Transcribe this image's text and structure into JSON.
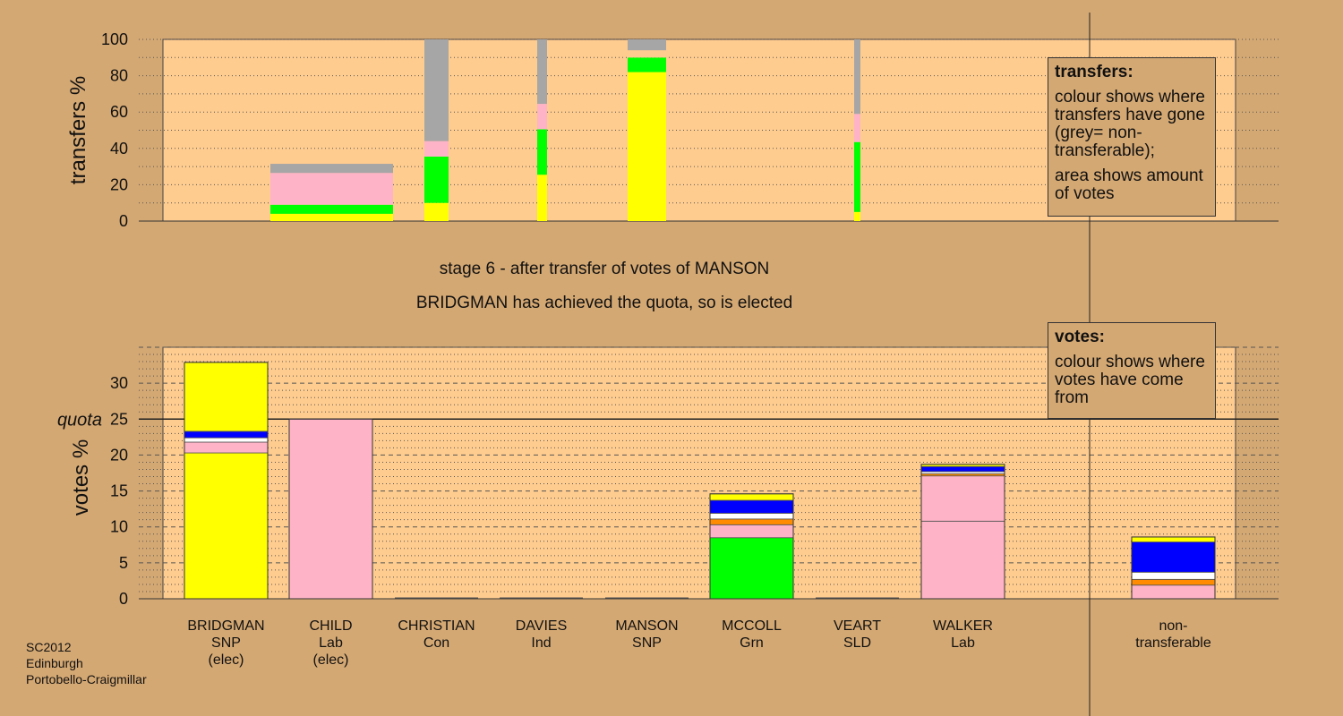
{
  "source": {
    "lines": [
      "SC2012",
      "Edinburgh",
      "Portobello-Craigmillar"
    ]
  },
  "stage": {
    "heading": "stage 6 - after transfer of votes of MANSON",
    "result": "BRIDGMAN has achieved the quota, so is elected"
  },
  "transfers_legend": {
    "title": "transfers:",
    "text1": "colour shows where transfers have gone (grey= non-transferable);",
    "text2": "area shows amount of votes"
  },
  "votes_legend": {
    "title": "votes:",
    "text1": "colour shows where votes have come from"
  },
  "colors": {
    "background": "#d4a873",
    "plot_area": "#ffcc8f",
    "snp": "#ffff00",
    "lab": "#ffb3c7",
    "con": "#0000ff",
    "ind": "#ffffff",
    "grn": "#00ff00",
    "sld": "#ff8c00",
    "non_transferable": "#a6a6a6"
  },
  "chart_data": [
    {
      "type": "bar",
      "ylabel": "transfers %",
      "ylim": [
        0,
        100
      ],
      "yticks": [
        0,
        20,
        40,
        60,
        80,
        100
      ],
      "bars": [
        {
          "name": "MANSON-1",
          "segments": [
            {
              "color": "#ffff00",
              "value": 4
            },
            {
              "color": "#00ff00",
              "value": 5
            },
            {
              "color": "#ffb3c7",
              "value": 17.5
            },
            {
              "color": "#a6a6a6",
              "value": 5
            }
          ]
        },
        {
          "name": "MANSON-2",
          "segments": [
            {
              "color": "#ffff00",
              "value": 10
            },
            {
              "color": "#00ff00",
              "value": 25.5
            },
            {
              "color": "#ffb3c7",
              "value": 8.5
            },
            {
              "color": "#a6a6a6",
              "value": 56
            }
          ]
        },
        {
          "name": "MANSON-3",
          "segments": [
            {
              "color": "#ffff00",
              "value": 25.5
            },
            {
              "color": "#00ff00",
              "value": 25
            },
            {
              "color": "#ffb3c7",
              "value": 14
            },
            {
              "color": "#a6a6a6",
              "value": 35.5
            }
          ]
        },
        {
          "name": "MANSON-4",
          "segments": [
            {
              "color": "#ffff00",
              "value": 82
            },
            {
              "color": "#00ff00",
              "value": 8
            },
            {
              "color": "#ffcc8f",
              "value": 4
            },
            {
              "color": "#a6a6a6",
              "value": 6
            }
          ]
        },
        {
          "name": "MANSON-5",
          "segments": [
            {
              "color": "#ffff00",
              "value": 5
            },
            {
              "color": "#00ff00",
              "value": 38.5
            },
            {
              "color": "#ffb3c7",
              "value": 15.5
            },
            {
              "color": "#a6a6a6",
              "value": 41
            }
          ]
        }
      ]
    },
    {
      "type": "bar",
      "ylabel": "votes %",
      "ylim": [
        0,
        35
      ],
      "yticks": [
        0,
        5,
        10,
        15,
        20,
        25,
        30
      ],
      "quota": {
        "label": "quota",
        "value": 25
      },
      "candidates": [
        {
          "name": "BRIDGMAN",
          "party": "SNP",
          "status": "(elec)",
          "segments": [
            {
              "color": "#ffff00",
              "value": 20.3
            },
            {
              "color": "#ffb3c7",
              "value": 1.5
            },
            {
              "color": "#ffffff",
              "value": 0.6
            },
            {
              "color": "#0000ff",
              "value": 0.9
            },
            {
              "color": "#ffff00",
              "value": 9.6
            }
          ]
        },
        {
          "name": "CHILD",
          "party": "Lab",
          "status": "(elec)",
          "segments": [
            {
              "color": "#ffb3c7",
              "value": 25.0
            }
          ]
        },
        {
          "name": "CHRISTIAN",
          "party": "Con",
          "status": "",
          "segments": []
        },
        {
          "name": "DAVIES",
          "party": "Ind",
          "status": "",
          "segments": []
        },
        {
          "name": "MANSON",
          "party": "SNP",
          "status": "",
          "segments": []
        },
        {
          "name": "MCCOLL",
          "party": "Grn",
          "status": "",
          "segments": [
            {
              "color": "#00ff00",
              "value": 8.5
            },
            {
              "color": "#ffb3c7",
              "value": 1.8
            },
            {
              "color": "#ff8c00",
              "value": 0.8
            },
            {
              "color": "#ffffff",
              "value": 0.8
            },
            {
              "color": "#0000ff",
              "value": 1.8
            },
            {
              "color": "#ffff00",
              "value": 0.9
            }
          ]
        },
        {
          "name": "VEART",
          "party": "SLD",
          "status": "",
          "segments": []
        },
        {
          "name": "WALKER",
          "party": "Lab",
          "status": "",
          "segments": [
            {
              "color": "#ffb3c7",
              "value": 10.8
            },
            {
              "color": "#ffb3c7",
              "value": 6.3
            },
            {
              "color": "#ff8c00",
              "value": 0.3
            },
            {
              "color": "#ffffff",
              "value": 0.3
            },
            {
              "color": "#0000ff",
              "value": 0.7
            },
            {
              "color": "#ffff00",
              "value": 0.3
            }
          ]
        },
        {
          "name": "non-",
          "party": "transferable",
          "status": "",
          "segments": [
            {
              "color": "#ffb3c7",
              "value": 1.9
            },
            {
              "color": "#ff8c00",
              "value": 0.8
            },
            {
              "color": "#ffffff",
              "value": 1.0
            },
            {
              "color": "#0000ff",
              "value": 4.2
            },
            {
              "color": "#ffff00",
              "value": 0.7
            }
          ]
        }
      ]
    }
  ]
}
